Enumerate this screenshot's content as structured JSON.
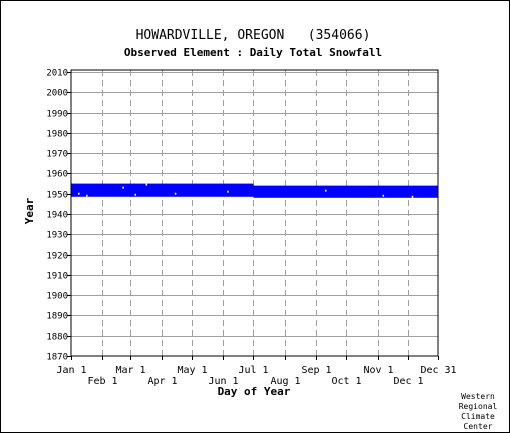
{
  "chart_data": {
    "type": "timeline",
    "title": "HOWARDVILLE, OREGON   (354066)",
    "subtitle": "Observed Element : Daily Total Snowfall",
    "xlabel": "Day of Year",
    "ylabel": "Year",
    "ylim": [
      1870,
      2011
    ],
    "yticks": [
      1870,
      1880,
      1890,
      1900,
      1910,
      1920,
      1930,
      1940,
      1950,
      1960,
      1970,
      1980,
      1990,
      2000,
      2010
    ],
    "xlim": [
      1,
      365
    ],
    "xticks_row1": [
      {
        "label": "Jan 1",
        "day": 1
      },
      {
        "label": "Mar 1",
        "day": 60
      },
      {
        "label": "May 1",
        "day": 121
      },
      {
        "label": "Jul 1",
        "day": 182
      },
      {
        "label": "Sep 1",
        "day": 244
      },
      {
        "label": "Nov 1",
        "day": 305
      },
      {
        "label": "Dec 31",
        "day": 365
      }
    ],
    "xticks_row2": [
      {
        "label": "Feb 1",
        "day": 32
      },
      {
        "label": "Apr 1",
        "day": 91
      },
      {
        "label": "Jun 1",
        "day": 152
      },
      {
        "label": "Aug 1",
        "day": 213
      },
      {
        "label": "Oct 1",
        "day": 274
      },
      {
        "label": "Dec 1",
        "day": 335
      }
    ],
    "grid": true,
    "data_color": "#0000ff",
    "coverage": [
      {
        "day_start": 1,
        "day_end": 181,
        "year_start": 1948.5,
        "year_end": 1955
      },
      {
        "day_start": 182,
        "day_end": 365,
        "year_start": 1948,
        "year_end": 1954
      }
    ],
    "gaps": [
      {
        "day": 8,
        "year": 1950
      },
      {
        "day": 16,
        "year": 1949
      },
      {
        "day": 52,
        "year": 1953
      },
      {
        "day": 64,
        "year": 1949.5
      },
      {
        "day": 75,
        "year": 1954.5
      },
      {
        "day": 104,
        "year": 1950
      },
      {
        "day": 156,
        "year": 1951
      },
      {
        "day": 253,
        "year": 1951.5
      },
      {
        "day": 310,
        "year": 1949
      },
      {
        "day": 339,
        "year": 1948.5
      }
    ]
  },
  "credit": [
    "Western",
    "Regional",
    "Climate",
    "Center"
  ]
}
